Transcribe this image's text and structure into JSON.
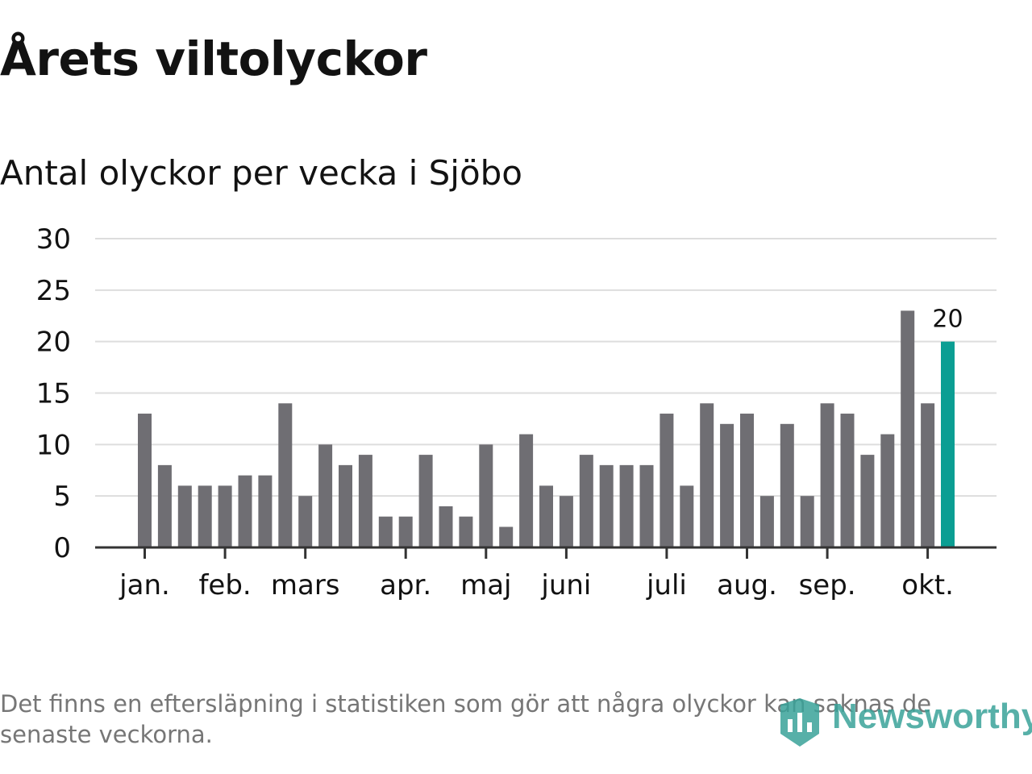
{
  "title": "Årets viltolyckor",
  "subtitle": "Antal olyckor per vecka i Sjöbo",
  "footnote": "Det finns en eftersläpning i statistiken som gör att några olyckor kan saknas de senaste veckorna.",
  "brand": {
    "name": "Newsworthy",
    "icon": "newsworthy-bar-chart-logo-icon"
  },
  "colors": {
    "bar": "#6f6e73",
    "highlight": "#0b9e93",
    "grid": "#dddddd",
    "axis": "#333333",
    "text": "#121212",
    "footnote": "#767676",
    "brand": "#3aa39a"
  },
  "chart_data": {
    "type": "bar",
    "values": [
      13,
      8,
      6,
      6,
      6,
      7,
      7,
      14,
      5,
      10,
      8,
      9,
      3,
      3,
      9,
      4,
      3,
      10,
      2,
      11,
      6,
      5,
      9,
      8,
      8,
      8,
      13,
      6,
      14,
      12,
      13,
      5,
      12,
      5,
      14,
      13,
      9,
      11,
      23,
      14,
      20
    ],
    "highlight_index": 40,
    "highlight_label": "20",
    "ylim": [
      0,
      30
    ],
    "yticks": [
      0,
      5,
      10,
      15,
      20,
      25,
      30
    ],
    "month_ticks": [
      {
        "label": "jan.",
        "bar": 0
      },
      {
        "label": "feb.",
        "bar": 4
      },
      {
        "label": "mars",
        "bar": 8
      },
      {
        "label": "apr.",
        "bar": 13
      },
      {
        "label": "maj",
        "bar": 17
      },
      {
        "label": "juni",
        "bar": 21
      },
      {
        "label": "juli",
        "bar": 26
      },
      {
        "label": "aug.",
        "bar": 30
      },
      {
        "label": "sep.",
        "bar": 34
      },
      {
        "label": "okt.",
        "bar": 39
      }
    ],
    "grid": true,
    "legend": "none"
  }
}
